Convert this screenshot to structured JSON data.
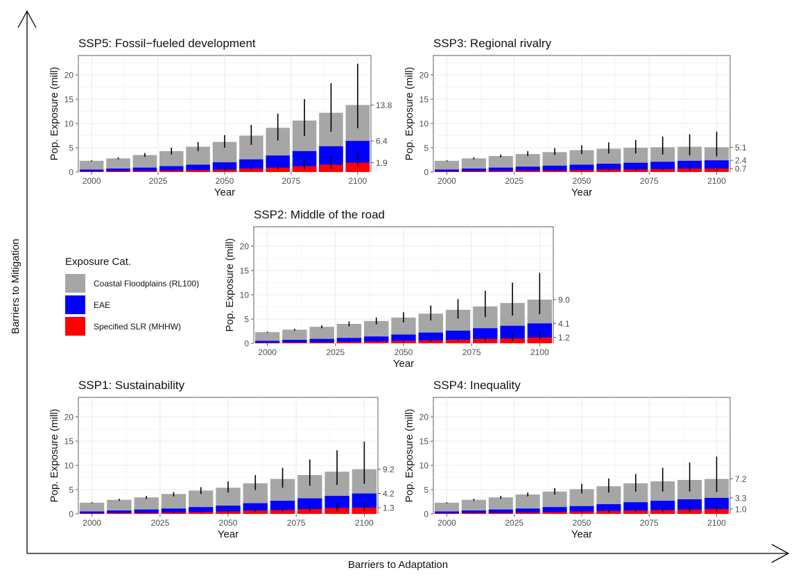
{
  "axes_frame": {
    "y_label": "Barriers to Mitigation",
    "x_label": "Barriers to Adaptation"
  },
  "legend": {
    "title": "Exposure Cat.",
    "items": [
      {
        "label": "Coastal Floodplains (RL100)",
        "color": "#a6a6a6"
      },
      {
        "label": "EAE",
        "color": "#0000ff"
      },
      {
        "label": "Specified SLR (MHHW)",
        "color": "#ff0000"
      }
    ]
  },
  "colors": {
    "coastal": "#a6a6a6",
    "eae": "#0000ff",
    "slr": "#ff0000",
    "panel_bg": "#ffffff",
    "grid": "#ebebeb",
    "error_bar": "#000000"
  },
  "chart_data": [
    {
      "type": "bar",
      "title": "SSP5: Fossil−fueled development",
      "xlabel": "Year",
      "ylabel": "Pop. Exposure (mill)",
      "ylim": [
        0,
        24
      ],
      "xlim": [
        1995,
        2105
      ],
      "x_ticks": [
        2000,
        2025,
        2050,
        2075,
        2100
      ],
      "y_ticks": [
        0,
        5,
        10,
        15,
        20
      ],
      "grid": true,
      "x": [
        2000,
        2010,
        2020,
        2030,
        2040,
        2050,
        2060,
        2070,
        2080,
        2090,
        2100
      ],
      "series": [
        {
          "name": "Coastal Floodplains (RL100)",
          "values": [
            2.3,
            2.8,
            3.5,
            4.3,
            5.2,
            6.2,
            7.5,
            9.1,
            10.6,
            12.2,
            13.8
          ],
          "error_low": [
            2.2,
            2.6,
            3.1,
            3.6,
            4.3,
            5.0,
            5.6,
            6.5,
            7.4,
            8.3,
            9.0
          ],
          "error_high": [
            2.4,
            3.0,
            3.9,
            5.0,
            6.2,
            7.6,
            9.7,
            12.0,
            15.0,
            18.3,
            22.3
          ]
        },
        {
          "name": "EAE",
          "values": [
            0.5,
            0.7,
            0.9,
            1.2,
            1.5,
            2.0,
            2.6,
            3.4,
            4.3,
            5.3,
            6.4
          ]
        },
        {
          "name": "Specified SLR (MHHW)",
          "values": [
            0.1,
            0.2,
            0.2,
            0.3,
            0.4,
            0.5,
            0.7,
            0.9,
            1.2,
            1.5,
            1.9
          ],
          "error_low": [
            0.1,
            0.15,
            0.2,
            0.2,
            0.3,
            0.3,
            0.4,
            0.5,
            0.6,
            0.7,
            0.9
          ],
          "error_high": [
            0.1,
            0.25,
            0.3,
            0.4,
            0.6,
            0.8,
            1.2,
            1.7,
            2.4,
            3.2,
            4.2
          ]
        }
      ],
      "end_labels": [
        "13.8",
        "6.4",
        "1.9"
      ]
    },
    {
      "type": "bar",
      "title": "SSP3: Regional rivalry",
      "xlabel": "Year",
      "ylabel": "Pop. Exposure (mill)",
      "ylim": [
        0,
        24
      ],
      "xlim": [
        1995,
        2105
      ],
      "x_ticks": [
        2000,
        2025,
        2050,
        2075,
        2100
      ],
      "y_ticks": [
        0,
        5,
        10,
        15,
        20
      ],
      "grid": true,
      "x": [
        2000,
        2010,
        2020,
        2030,
        2040,
        2050,
        2060,
        2070,
        2080,
        2090,
        2100
      ],
      "series": [
        {
          "name": "Coastal Floodplains (RL100)",
          "values": [
            2.3,
            2.8,
            3.3,
            3.7,
            4.1,
            4.5,
            4.8,
            5.0,
            5.1,
            5.2,
            5.1
          ],
          "error_low": [
            2.2,
            2.6,
            3.0,
            3.3,
            3.5,
            3.7,
            3.8,
            3.8,
            3.6,
            3.4,
            3.2
          ],
          "error_high": [
            2.4,
            3.0,
            3.6,
            4.3,
            4.9,
            5.5,
            6.1,
            6.6,
            7.3,
            7.8,
            8.3
          ]
        },
        {
          "name": "EAE",
          "values": [
            0.5,
            0.7,
            0.9,
            1.1,
            1.3,
            1.5,
            1.7,
            1.9,
            2.1,
            2.3,
            2.4
          ]
        },
        {
          "name": "Specified SLR (MHHW)",
          "values": [
            0.1,
            0.2,
            0.2,
            0.3,
            0.3,
            0.4,
            0.5,
            0.5,
            0.6,
            0.7,
            0.7
          ],
          "error_low": [
            0.1,
            0.15,
            0.2,
            0.2,
            0.2,
            0.3,
            0.3,
            0.3,
            0.4,
            0.4,
            0.4
          ],
          "error_high": [
            0.1,
            0.25,
            0.3,
            0.4,
            0.5,
            0.6,
            0.7,
            0.8,
            0.9,
            1.0,
            1.1
          ]
        }
      ],
      "end_labels": [
        "5.1",
        "2.4",
        "0.7"
      ]
    },
    {
      "type": "bar",
      "title": "SSP2: Middle of the road",
      "xlabel": "Year",
      "ylabel": "Pop. Exposure (mill)",
      "ylim": [
        0,
        24
      ],
      "xlim": [
        1995,
        2105
      ],
      "x_ticks": [
        2000,
        2025,
        2050,
        2075,
        2100
      ],
      "y_ticks": [
        0,
        5,
        10,
        15,
        20
      ],
      "grid": true,
      "x": [
        2000,
        2010,
        2020,
        2030,
        2040,
        2050,
        2060,
        2070,
        2080,
        2090,
        2100
      ],
      "series": [
        {
          "name": "Coastal Floodplains (RL100)",
          "values": [
            2.3,
            2.8,
            3.4,
            4.0,
            4.6,
            5.3,
            6.1,
            6.9,
            7.6,
            8.3,
            9.0
          ],
          "error_low": [
            2.2,
            2.6,
            3.1,
            3.5,
            3.9,
            4.3,
            4.7,
            5.1,
            5.4,
            5.7,
            6.0
          ],
          "error_high": [
            2.4,
            3.0,
            3.7,
            4.5,
            5.3,
            6.4,
            7.8,
            9.1,
            10.8,
            12.5,
            14.5
          ]
        },
        {
          "name": "EAE",
          "values": [
            0.5,
            0.7,
            0.9,
            1.1,
            1.4,
            1.8,
            2.2,
            2.6,
            3.1,
            3.6,
            4.1
          ]
        },
        {
          "name": "Specified SLR (MHHW)",
          "values": [
            0.1,
            0.2,
            0.2,
            0.3,
            0.4,
            0.5,
            0.6,
            0.7,
            0.9,
            1.0,
            1.2
          ],
          "error_low": [
            0.1,
            0.15,
            0.2,
            0.2,
            0.3,
            0.3,
            0.4,
            0.4,
            0.5,
            0.5,
            0.6
          ],
          "error_high": [
            0.1,
            0.25,
            0.3,
            0.4,
            0.5,
            0.7,
            0.9,
            1.2,
            1.5,
            1.9,
            2.4
          ]
        }
      ],
      "end_labels": [
        "9.0",
        "4.1",
        "1.2"
      ]
    },
    {
      "type": "bar",
      "title": "SSP1: Sustainability",
      "xlabel": "Year",
      "ylabel": "Pop. Exposure (mill)",
      "ylim": [
        0,
        24
      ],
      "xlim": [
        1995,
        2105
      ],
      "x_ticks": [
        2000,
        2025,
        2050,
        2075,
        2100
      ],
      "y_ticks": [
        0,
        5,
        10,
        15,
        20
      ],
      "grid": true,
      "x": [
        2000,
        2010,
        2020,
        2030,
        2040,
        2050,
        2060,
        2070,
        2080,
        2090,
        2100
      ],
      "series": [
        {
          "name": "Coastal Floodplains (RL100)",
          "values": [
            2.3,
            2.9,
            3.4,
            4.1,
            4.8,
            5.4,
            6.3,
            7.2,
            8.0,
            8.7,
            9.2
          ],
          "error_low": [
            2.2,
            2.7,
            3.1,
            3.6,
            4.1,
            4.4,
            4.9,
            5.4,
            5.8,
            6.0,
            6.2
          ],
          "error_high": [
            2.4,
            3.1,
            3.7,
            4.5,
            5.5,
            6.7,
            8.0,
            9.5,
            11.2,
            13.1,
            14.9
          ]
        },
        {
          "name": "EAE",
          "values": [
            0.5,
            0.7,
            0.9,
            1.1,
            1.4,
            1.7,
            2.2,
            2.7,
            3.2,
            3.7,
            4.2
          ]
        },
        {
          "name": "Specified SLR (MHHW)",
          "values": [
            0.1,
            0.2,
            0.2,
            0.3,
            0.4,
            0.5,
            0.7,
            0.8,
            1.0,
            1.2,
            1.3
          ],
          "error_low": [
            0.1,
            0.15,
            0.2,
            0.2,
            0.3,
            0.3,
            0.4,
            0.4,
            0.5,
            0.6,
            0.6
          ],
          "error_high": [
            0.1,
            0.25,
            0.3,
            0.4,
            0.5,
            0.7,
            1.0,
            1.3,
            1.7,
            2.1,
            2.5
          ]
        }
      ],
      "end_labels": [
        "9.2",
        "4.2",
        "1.3"
      ]
    },
    {
      "type": "bar",
      "title": "SSP4: Inequality",
      "xlabel": "Year",
      "ylabel": "Pop. Exposure (mill)",
      "ylim": [
        0,
        24
      ],
      "xlim": [
        1995,
        2105
      ],
      "x_ticks": [
        2000,
        2025,
        2050,
        2075,
        2100
      ],
      "y_ticks": [
        0,
        5,
        10,
        15,
        20
      ],
      "grid": true,
      "x": [
        2000,
        2010,
        2020,
        2030,
        2040,
        2050,
        2060,
        2070,
        2080,
        2090,
        2100
      ],
      "series": [
        {
          "name": "Coastal Floodplains (RL100)",
          "values": [
            2.3,
            2.9,
            3.4,
            4.0,
            4.6,
            5.1,
            5.7,
            6.3,
            6.7,
            7.0,
            7.2
          ],
          "error_low": [
            2.2,
            2.7,
            3.1,
            3.6,
            4.0,
            4.2,
            4.4,
            4.6,
            4.6,
            4.6,
            4.5
          ],
          "error_high": [
            2.4,
            3.1,
            3.7,
            4.4,
            5.3,
            6.2,
            7.3,
            8.2,
            9.5,
            10.6,
            11.8
          ]
        },
        {
          "name": "EAE",
          "values": [
            0.5,
            0.7,
            0.9,
            1.1,
            1.4,
            1.6,
            2.0,
            2.4,
            2.7,
            3.0,
            3.3
          ]
        },
        {
          "name": "Specified SLR (MHHW)",
          "values": [
            0.1,
            0.2,
            0.2,
            0.3,
            0.4,
            0.5,
            0.6,
            0.7,
            0.8,
            0.9,
            1.0
          ],
          "error_low": [
            0.1,
            0.15,
            0.2,
            0.2,
            0.3,
            0.3,
            0.3,
            0.4,
            0.4,
            0.4,
            0.5
          ],
          "error_high": [
            0.1,
            0.25,
            0.3,
            0.4,
            0.5,
            0.6,
            0.8,
            1.0,
            1.2,
            1.4,
            1.7
          ]
        }
      ],
      "end_labels": [
        "7.2",
        "3.3",
        "1.0"
      ]
    }
  ]
}
